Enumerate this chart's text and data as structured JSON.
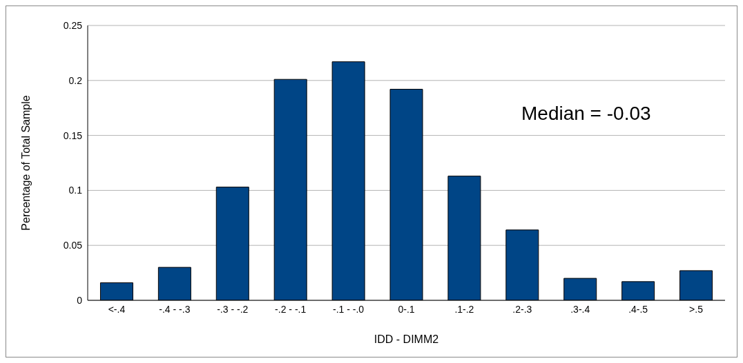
{
  "chart_data": {
    "type": "bar",
    "xlabel": "IDD - DIMM2",
    "ylabel": "Percentage of Total Sample",
    "categories": [
      "<-.4",
      "-.4 - -.3",
      "-.3 - -.2",
      "-.2 - -.1",
      "-.1 - -.0",
      "0-.1",
      ".1-.2",
      ".2-.3",
      ".3-.4",
      ".4-.5",
      ">.5"
    ],
    "values": [
      0.016,
      0.03,
      0.103,
      0.201,
      0.217,
      0.192,
      0.113,
      0.064,
      0.02,
      0.017,
      0.027
    ],
    "color": "#004586",
    "ylim": [
      0,
      0.25
    ],
    "yticks": [
      0,
      0.05,
      0.1,
      0.15,
      0.2,
      0.25
    ],
    "grid": "y",
    "legend": false,
    "annotations": [
      "Median = -0.03"
    ]
  }
}
